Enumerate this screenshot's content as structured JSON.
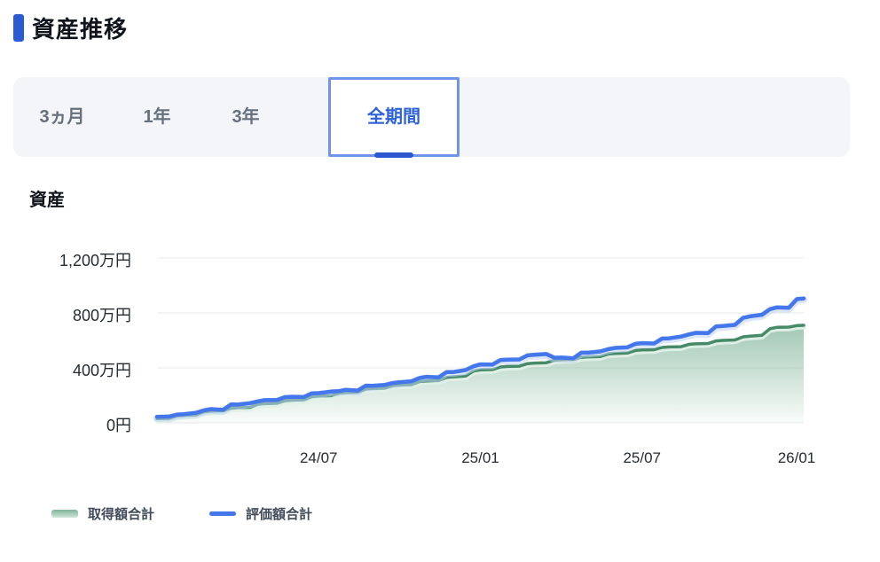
{
  "header": {
    "title": "資産推移",
    "accent_color": "#2b5ad5"
  },
  "period_tabs": {
    "items": [
      {
        "label": "3ヵ月",
        "selected": false
      },
      {
        "label": "1年",
        "selected": false
      },
      {
        "label": "3年",
        "selected": false
      },
      {
        "label": "全期間",
        "selected": true
      }
    ],
    "selected_text_color": "#2d62d9",
    "selected_border_color": "#6e95e9",
    "indicator_color": "#2c57cf",
    "bar_background": "#f3f5f9"
  },
  "chart_section": {
    "title": "資産"
  },
  "chart_data": {
    "type": "area+line",
    "title": "資産",
    "unit": "万円",
    "x": [
      "24/01",
      "24/02",
      "24/03",
      "24/04",
      "24/05",
      "24/06",
      "24/07",
      "24/08",
      "24/09",
      "24/10",
      "24/11",
      "24/12",
      "25/01",
      "25/02",
      "25/03",
      "25/04",
      "25/05",
      "25/06",
      "25/07",
      "25/08",
      "25/09",
      "25/10",
      "25/11",
      "25/12",
      "26/01"
    ],
    "x_tick_indices": [
      6,
      12,
      18,
      24
    ],
    "x_tick_labels": [
      "24/07",
      "25/01",
      "25/07",
      "26/01"
    ],
    "y_ticks": [
      {
        "label": "1,200万円",
        "value": 1200
      },
      {
        "label": "800万円",
        "value": 800
      },
      {
        "label": "400万円",
        "value": 400
      },
      {
        "label": "0円",
        "value": 0
      }
    ],
    "ylim": [
      0,
      1270
    ],
    "grid": true,
    "grid_color": "#e7e8ea",
    "legend_position": "bottom-left",
    "series": [
      {
        "name": "取得額合計",
        "type": "area",
        "line_color": "#478a67",
        "fill_top": "rgba(105,167,134,0.62)",
        "fill_bottom": "rgba(105,167,134,0.04)",
        "values": [
          30,
          55,
          85,
          110,
          140,
          165,
          195,
          220,
          250,
          275,
          305,
          335,
          385,
          410,
          435,
          460,
          480,
          505,
          530,
          552,
          575,
          600,
          630,
          695,
          710
        ]
      },
      {
        "name": "評価額合計",
        "type": "line",
        "line_color": "#4377eb",
        "values": [
          44,
          63,
          100,
          133,
          165,
          190,
          216,
          240,
          270,
          295,
          335,
          370,
          425,
          460,
          495,
          475,
          510,
          545,
          580,
          615,
          655,
          705,
          775,
          840,
          905
        ]
      }
    ]
  },
  "legend": {
    "items": [
      {
        "label": "取得額合計",
        "swatch": "area-green"
      },
      {
        "label": "評価額合計",
        "swatch": "line-blue"
      }
    ]
  }
}
